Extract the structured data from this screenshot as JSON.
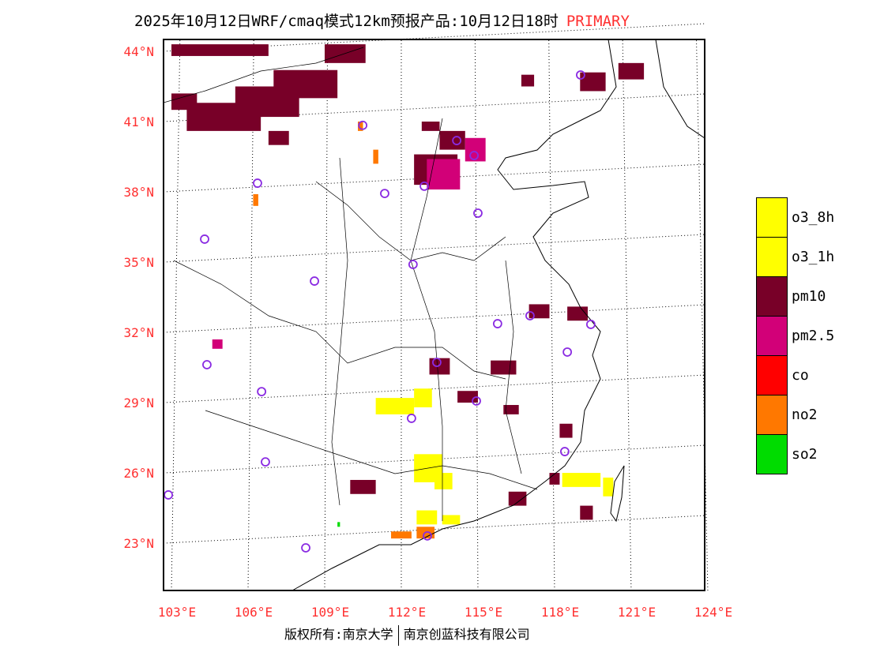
{
  "title": {
    "main": "2025年10月12日WRF/cmaq模式12km预报产品:10月12日18时",
    "tag": "PRIMARY"
  },
  "lat_labels": [
    "44°N",
    "41°N",
    "38°N",
    "35°N",
    "32°N",
    "29°N",
    "26°N",
    "23°N"
  ],
  "lon_labels": [
    "103°E",
    "106°E",
    "109°E",
    "112°E",
    "115°E",
    "118°E",
    "121°E",
    "124°E"
  ],
  "footer": {
    "left": "版权所有:南京大学",
    "right": "南京创蓝科技有限公司"
  },
  "legend": [
    {
      "label": "o3_8h",
      "color": "#ffff00"
    },
    {
      "label": "o3_1h",
      "color": "#ffff00"
    },
    {
      "label": "pm10",
      "color": "#780028"
    },
    {
      "label": "pm2.5",
      "color": "#d20078"
    },
    {
      "label": "co",
      "color": "#ff0000"
    },
    {
      "label": "no2",
      "color": "#ff7800"
    },
    {
      "label": "so2",
      "color": "#00dc00"
    }
  ],
  "patches": [
    [
      "pm10",
      103,
      42.2,
      104,
      41.5
    ],
    [
      "pm10",
      103.6,
      41.8,
      106.5,
      40.6
    ],
    [
      "pm10",
      105.5,
      42.5,
      108,
      41.2
    ],
    [
      "pm10",
      107,
      43.2,
      109.5,
      42
    ],
    [
      "pm10",
      109,
      44.3,
      110.6,
      43.5
    ],
    [
      "pm10",
      103,
      44.3,
      106.8,
      43.8
    ],
    [
      "pm10",
      112.5,
      39.6,
      114.2,
      38.3
    ],
    [
      "pm10",
      113.5,
      40.6,
      114.5,
      39.8
    ],
    [
      "pm10",
      112.8,
      41,
      113.5,
      40.6
    ],
    [
      "pm10",
      106.8,
      40.6,
      107.6,
      40
    ],
    [
      "pm10",
      119,
      43.1,
      120,
      42.3
    ],
    [
      "pm10",
      120.5,
      43.5,
      121.5,
      42.8
    ],
    [
      "pm10",
      116.7,
      43,
      117.2,
      42.5
    ],
    [
      "pm10",
      113.1,
      30.9,
      113.9,
      30.2
    ],
    [
      "pm10",
      117,
      33.2,
      117.8,
      32.6
    ],
    [
      "pm10",
      118.5,
      33.1,
      119.3,
      32.5
    ],
    [
      "pm10",
      115.5,
      30.8,
      116.5,
      30.2
    ],
    [
      "pm10",
      114.2,
      29.5,
      115,
      29
    ],
    [
      "pm10",
      116,
      28.9,
      116.6,
      28.5
    ],
    [
      "pm10",
      118.2,
      28.1,
      118.7,
      27.5
    ],
    [
      "pm10",
      116.2,
      25.2,
      116.9,
      24.6
    ],
    [
      "pm10",
      110,
      25.7,
      111,
      25.1
    ],
    [
      "pm10",
      117.8,
      26,
      118.2,
      25.5
    ],
    [
      "pm10",
      119,
      24.6,
      119.5,
      24
    ],
    [
      "pm2.5",
      113,
      39.4,
      114.3,
      38.1
    ],
    [
      "pm2.5",
      114.5,
      40.3,
      115.3,
      39.3
    ],
    [
      "pm2.5",
      104.6,
      31.7,
      105,
      31.3
    ],
    [
      "o3_8h",
      111,
      29.2,
      112.5,
      28.5
    ],
    [
      "o3_8h",
      112.5,
      26.8,
      113.6,
      25.6
    ],
    [
      "o3_8h",
      113.3,
      26,
      114,
      25.3
    ],
    [
      "o3_8h",
      112.5,
      29.6,
      113.2,
      28.8
    ],
    [
      "o3_8h",
      118.3,
      26,
      119.8,
      25.4
    ],
    [
      "o3_8h",
      112.6,
      24.4,
      113.4,
      23.8
    ],
    [
      "o3_8h",
      113.6,
      24.2,
      114.3,
      23.8
    ],
    [
      "o3_8h",
      119.9,
      25.8,
      120.3,
      25
    ],
    [
      "no2",
      112.6,
      23.7,
      113.3,
      23.2
    ],
    [
      "no2",
      111.6,
      23.5,
      112.4,
      23.2
    ],
    [
      "no2",
      110.3,
      41,
      110.5,
      40.6
    ],
    [
      "no2",
      110.9,
      39.8,
      111.1,
      39.2
    ],
    [
      "no2",
      106.2,
      37.9,
      106.4,
      37.4
    ],
    [
      "so2",
      109.5,
      23.9,
      109.6,
      23.7
    ]
  ],
  "stations": [
    [
      119.02,
      42.99
    ],
    [
      110.49,
      40.84
    ],
    [
      114.17,
      40.19
    ],
    [
      114.85,
      39.55
    ],
    [
      106.37,
      38.37
    ],
    [
      112.9,
      38.24
    ],
    [
      111.35,
      37.93
    ],
    [
      115.0,
      37.09
    ],
    [
      104.3,
      35.98
    ],
    [
      112.46,
      34.9
    ],
    [
      108.6,
      34.19
    ],
    [
      117.04,
      32.71
    ],
    [
      115.77,
      32.37
    ],
    [
      119.42,
      32.34
    ],
    [
      118.5,
      31.16
    ],
    [
      104.39,
      30.62
    ],
    [
      113.39,
      30.72
    ],
    [
      106.53,
      29.47
    ],
    [
      114.94,
      29.07
    ],
    [
      112.4,
      28.33
    ],
    [
      106.68,
      26.47
    ],
    [
      118.4,
      26.91
    ],
    [
      102.88,
      25.06
    ],
    [
      113.02,
      23.31
    ],
    [
      108.26,
      22.8
    ]
  ]
}
